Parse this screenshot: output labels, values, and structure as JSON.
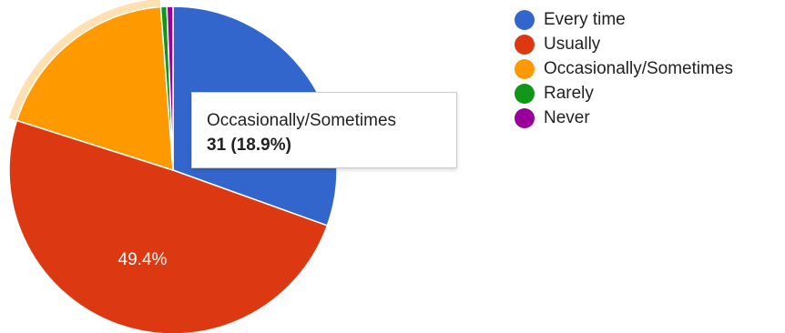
{
  "chart_data": {
    "type": "pie",
    "categories": [
      "Every time",
      "Usually",
      "Occasionally/Sometimes",
      "Rarely",
      "Never"
    ],
    "values": [
      30.5,
      49.4,
      18.9,
      0.6,
      0.6
    ],
    "value_unit": "%",
    "slice_labels": [
      "30.5%",
      "49.4%",
      "",
      "",
      ""
    ],
    "colors": [
      "#3366cc",
      "#dc3912",
      "#ff9900",
      "#109618",
      "#990099"
    ],
    "highlighted_slice": "Occasionally/Sometimes",
    "legend_position": "right"
  },
  "tooltip": {
    "label": "Occasionally/Sometimes",
    "value": "31 (18.9%)"
  }
}
